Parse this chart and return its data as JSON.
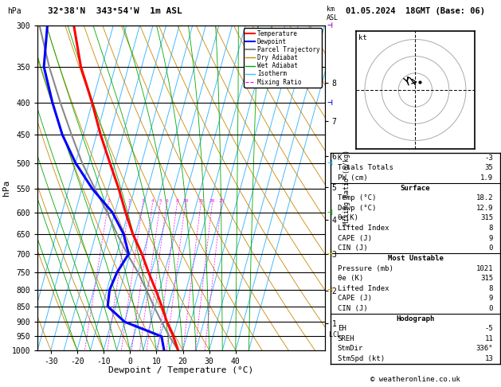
{
  "title_left": "32°38'N  343°54'W  1m ASL",
  "title_right": "01.05.2024  18GMT (Base: 06)",
  "xlabel": "Dewpoint / Temperature (°C)",
  "ylabel_left": "hPa",
  "pressure_levels": [
    300,
    350,
    400,
    450,
    500,
    550,
    600,
    650,
    700,
    750,
    800,
    850,
    900,
    950,
    1000
  ],
  "x_min": -35,
  "x_max": 40,
  "p_min": 300,
  "p_max": 1000,
  "skew": 28.0,
  "temp_color": "#ff0000",
  "dewp_color": "#0000ff",
  "parcel_color": "#888888",
  "dry_adiabat_color": "#cc8800",
  "wet_adiabat_color": "#00aa00",
  "isotherm_color": "#44bbff",
  "mixing_ratio_color": "#ff00ff",
  "km_labels": [
    1,
    2,
    3,
    4,
    5,
    6,
    7,
    8
  ],
  "km_pressures": [
    905,
    803,
    700,
    617,
    547,
    487,
    428,
    371
  ],
  "mixing_ratio_vals": [
    1,
    2,
    3,
    4,
    5,
    6,
    8,
    10,
    15,
    20,
    25
  ],
  "temp_profile_p": [
    1000,
    950,
    900,
    850,
    800,
    750,
    700,
    650,
    600,
    550,
    500,
    450,
    400,
    350,
    300
  ],
  "temp_profile_T": [
    18.2,
    15.0,
    11.0,
    7.5,
    3.5,
    -1.0,
    -5.5,
    -11.0,
    -16.0,
    -21.0,
    -27.0,
    -33.5,
    -40.0,
    -48.0,
    -55.0
  ],
  "dewp_profile_p": [
    1000,
    950,
    900,
    850,
    800,
    750,
    700,
    650,
    600,
    550,
    500,
    450,
    400,
    350,
    300
  ],
  "dewp_profile_T": [
    12.9,
    10.5,
    -5.0,
    -13.0,
    -14.0,
    -13.0,
    -10.5,
    -14.5,
    -21.0,
    -31.0,
    -40.0,
    -48.0,
    -55.0,
    -62.0,
    -65.0
  ],
  "parcel_profile_p": [
    1000,
    950,
    900,
    850,
    800,
    750,
    700,
    650,
    600,
    550,
    500,
    450,
    400,
    350,
    300
  ],
  "parcel_profile_T": [
    18.2,
    13.5,
    9.0,
    4.5,
    0.0,
    -5.0,
    -11.0,
    -17.0,
    -23.0,
    -30.0,
    -37.5,
    -44.5,
    -52.0,
    -60.0,
    -68.0
  ],
  "lcl_pressure": 945,
  "table_rows": [
    [
      "K",
      "-3",
      false
    ],
    [
      "Totals Totals",
      "35",
      false
    ],
    [
      "PW (cm)",
      "1.9",
      false
    ],
    [
      "Surface",
      "",
      true
    ],
    [
      "Temp (°C)",
      "18.2",
      false
    ],
    [
      "Dewp (°C)",
      "12.9",
      false
    ],
    [
      "θe(K)",
      "315",
      false
    ],
    [
      "Lifted Index",
      "8",
      false
    ],
    [
      "CAPE (J)",
      "9",
      false
    ],
    [
      "CIN (J)",
      "0",
      false
    ],
    [
      "Most Unstable",
      "",
      true
    ],
    [
      "Pressure (mb)",
      "1021",
      false
    ],
    [
      "θe (K)",
      "315",
      false
    ],
    [
      "Lifted Index",
      "8",
      false
    ],
    [
      "CAPE (J)",
      "9",
      false
    ],
    [
      "CIN (J)",
      "0",
      false
    ],
    [
      "Hodograph",
      "",
      true
    ],
    [
      "EH",
      "-5",
      false
    ],
    [
      "SREH",
      "11",
      false
    ],
    [
      "StmDir",
      "336°",
      false
    ],
    [
      "StmSpd (kt)",
      "13",
      false
    ]
  ],
  "copyright": "© weatheronline.co.uk",
  "hodo_u": [
    0.0,
    -1.5,
    -3.0,
    -4.0,
    -5.0,
    -4.0
  ],
  "hodo_v": [
    3.0,
    5.0,
    7.0,
    7.5,
    5.5,
    3.0
  ],
  "storm_u": 2.5,
  "storm_v": 4.5,
  "wind_barb_p": [
    300,
    400,
    500,
    600,
    700,
    800
  ],
  "wind_barb_colors": [
    "#9900cc",
    "#0000ff",
    "#00ccff",
    "#00cc00",
    "#cccc00",
    "#cc8800"
  ]
}
